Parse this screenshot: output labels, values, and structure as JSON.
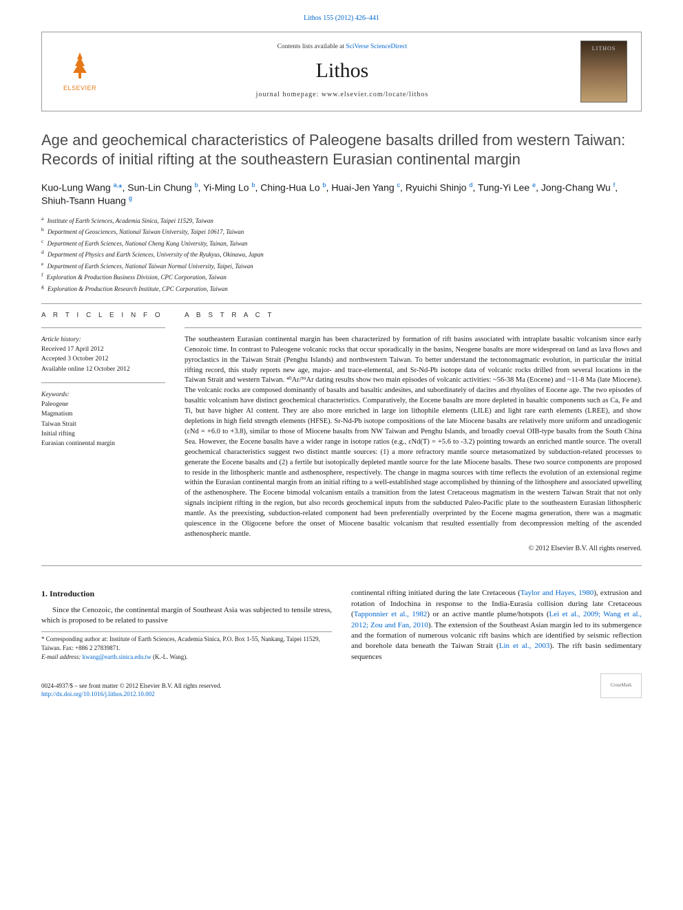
{
  "journal_ref": "Lithos 155 (2012) 426–441",
  "header": {
    "contents_prefix": "Contents lists available at ",
    "contents_link": "SciVerse ScienceDirect",
    "journal_name": "Lithos",
    "homepage_prefix": "journal homepage: ",
    "homepage_url": "www.elsevier.com/locate/lithos",
    "publisher": "ELSEVIER"
  },
  "article": {
    "title": "Age and geochemical characteristics of Paleogene basalts drilled from western Taiwan: Records of initial rifting at the southeastern Eurasian continental margin",
    "authors_html": "Kuo-Lung Wang <sup>a,</sup><span class='corr-star'>*</span>, Sun-Lin Chung <sup>b</sup>, Yi-Ming Lo <sup>b</sup>, Ching-Hua Lo <sup>b</sup>, Huai-Jen Yang <sup>c</sup>, Ryuichi Shinjo <sup>d</sup>, Tung-Yi Lee <sup>e</sup>, Jong-Chang Wu <sup>f</sup>, Shiuh-Tsann Huang <sup>g</sup>",
    "affiliations": [
      {
        "tag": "a",
        "text": "Institute of Earth Sciences, Academia Sinica, Taipei 11529, Taiwan"
      },
      {
        "tag": "b",
        "text": "Department of Geosciences, National Taiwan University, Taipei 10617, Taiwan"
      },
      {
        "tag": "c",
        "text": "Department of Earth Sciences, National Cheng Kung University, Tainan, Taiwan"
      },
      {
        "tag": "d",
        "text": "Department of Physics and Earth Sciences, University of the Ryukyus, Okinawa, Japan"
      },
      {
        "tag": "e",
        "text": "Department of Earth Sciences, National Taiwan Normal University, Taipei, Taiwan"
      },
      {
        "tag": "f",
        "text": "Exploration & Production Business Division, CPC Corporation, Taiwan"
      },
      {
        "tag": "g",
        "text": "Exploration & Production Research Institute, CPC Corporation, Taiwan"
      }
    ]
  },
  "article_info": {
    "heading": "A R T I C L E   I N F O",
    "history_label": "Article history:",
    "received": "Received 17 April 2012",
    "accepted": "Accepted 3 October 2012",
    "online": "Available online 12 October 2012",
    "keywords_label": "Keywords:",
    "keywords": [
      "Paleogene",
      "Magmatism",
      "Taiwan Strait",
      "Initial rifting",
      "Eurasian continental margin"
    ]
  },
  "abstract": {
    "heading": "A B S T R A C T",
    "text": "The southeastern Eurasian continental margin has been characterized by formation of rift basins associated with intraplate basaltic volcanism since early Cenozoic time. In contrast to Paleogene volcanic rocks that occur sporadically in the basins, Neogene basalts are more widespread on land as lava flows and pyroclastics in the Taiwan Strait (Penghu Islands) and northwestern Taiwan. To better understand the tectonomagmatic evolution, in particular the initial rifting record, this study reports new age, major- and trace-elemental, and Sr-Nd-Pb isotope data of volcanic rocks drilled from several locations in the Taiwan Strait and western Taiwan. ⁴⁰Ar/³⁹Ar dating results show two main episodes of volcanic activities: ~56-38 Ma (Eocene) and ~11-8 Ma (late Miocene). The volcanic rocks are composed dominantly of basalts and basaltic andesites, and subordinately of dacites and rhyolites of Eocene age. The two episodes of basaltic volcanism have distinct geochemical characteristics. Comparatively, the Eocene basalts are more depleted in basaltic components such as Ca, Fe and Ti, but have higher Al content. They are also more enriched in large ion lithophile elements (LILE) and light rare earth elements (LREE), and show depletions in high field strength elements (HFSE). Sr-Nd-Pb isotope compositions of the late Miocene basalts are relatively more uniform and unradiogenic (εNd = +6.0 to +3.8), similar to those of Miocene basalts from NW Taiwan and Penghu Islands, and broadly coeval OIB-type basalts from the South China Sea. However, the Eocene basalts have a wider range in isotope ratios (e.g., εNd(T) = +5.6 to -3.2) pointing towards an enriched mantle source. The overall geochemical characteristics suggest two distinct mantle sources: (1) a more refractory mantle source metasomatized by subduction-related processes to generate the Eocene basalts and (2) a fertile but isotopically depleted mantle source for the late Miocene basalts. These two source components are proposed to reside in the lithospheric mantle and asthenosphere, respectively. The change in magma sources with time reflects the evolution of an extensional regime within the Eurasian continental margin from an initial rifting to a well-established stage accomplished by thinning of the lithosphere and associated upwelling of the asthenosphere. The Eocene bimodal volcanism entails a transition from the latest Cretaceous magmatism in the western Taiwan Strait that not only signals incipient rifting in the region, but also records geochemical inputs from the subducted Paleo-Pacific plate to the southeastern Eurasian lithospheric mantle. As the preexisting, subduction-related component had been preferentially overprinted by the Eocene magma generation, there was a magmatic quiescence in the Oligocene before the onset of Miocene basaltic volcanism that resulted essentially from decompression melting of the ascended asthenospheric mantle.",
    "copyright": "© 2012 Elsevier B.V. All rights reserved."
  },
  "body": {
    "section_heading": "1. Introduction",
    "para1": "Since the Cenozoic, the continental margin of Southeast Asia was subjected to tensile stress, which is proposed to be related to passive",
    "para2_pre": "continental rifting initiated during the late Cretaceous (",
    "ref1": "Taylor and Hayes, 1980",
    "para2_mid1": "), extrusion and rotation of Indochina in response to the India-Eurasia collision during late Cretaceous (",
    "ref2": "Tapponnier et al., 1982",
    "para2_mid2": ") or an active mantle plume/hotspots (",
    "ref3": "Lei et al., 2009; Wang et al., 2012; Zou and Fan, 2010",
    "para2_mid3": "). The extension of the Southeast Asian margin led to its submergence and the formation of numerous volcanic rift basins which are identified by seismic reflection and borehole data beneath the Taiwan Strait (",
    "ref4": "Lin et al., 2003",
    "para2_end": "). The rift basin sedimentary sequences"
  },
  "footnote": {
    "corr_label": "* Corresponding author at: Institute of Earth Sciences, Academia Sinica, P.O. Box 1-55, Nankang, Taipei 11529, Taiwan. Fax: +886 2 27839871.",
    "email_label": "E-mail address:",
    "email": "kwang@earth.sinica.edu.tw",
    "email_suffix": "(K.-L. Wang)."
  },
  "footer": {
    "issn_line": "0024-4937/$ – see front matter © 2012 Elsevier B.V. All rights reserved.",
    "doi": "http://dx.doi.org/10.1016/j.lithos.2012.10.002"
  },
  "colors": {
    "link": "#0066cc",
    "elsevier_orange": "#e67817",
    "text": "#1a1a1a",
    "border": "#999999"
  }
}
